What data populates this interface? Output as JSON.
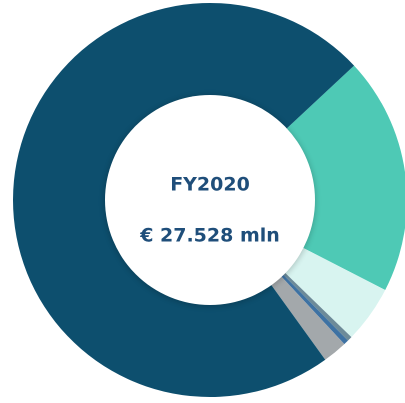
{
  "chart_data": {
    "type": "donut",
    "title": "FY2020",
    "subtitle": "€ 27.528 mln",
    "values": [
      19.5,
      4.7,
      0.4,
      0.4,
      2,
      73
    ],
    "colors": [
      "#4ec9b5",
      "#d8f4f0",
      "#6d8b99",
      "#3e72a3",
      "#a3a8ab",
      "#0d4f6e"
    ]
  }
}
